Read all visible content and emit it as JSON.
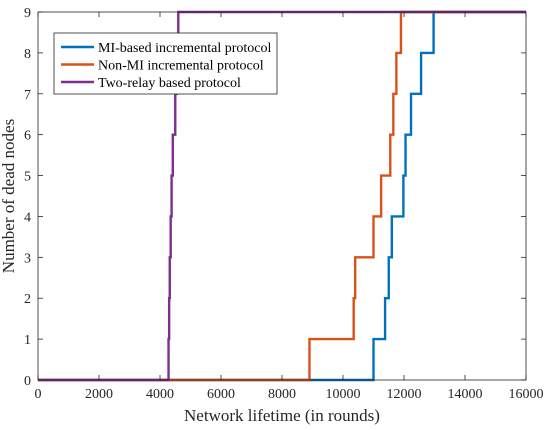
{
  "chart_data": {
    "type": "line",
    "step": true,
    "title": "",
    "xlabel": "Network lifetime (in rounds)",
    "ylabel": "Number of dead nodes",
    "xlim": [
      0,
      16000
    ],
    "ylim": [
      0,
      9
    ],
    "xticks": [
      0,
      2000,
      4000,
      6000,
      8000,
      10000,
      12000,
      14000,
      16000
    ],
    "yticks": [
      0,
      1,
      2,
      3,
      4,
      5,
      6,
      7,
      8,
      9
    ],
    "grid": false,
    "legend_position": "top-left",
    "series": [
      {
        "name": "MI-based incremental protocol",
        "color": "#0072BD",
        "x": [
          0,
          11000,
          11380,
          11500,
          11600,
          11980,
          12050,
          12230,
          12560,
          12970,
          16000
        ],
        "y": [
          0,
          1,
          2,
          3,
          4,
          5,
          6,
          7,
          8,
          9,
          9
        ]
      },
      {
        "name": "Non-MI incremental protocol",
        "color": "#D95319",
        "x": [
          0,
          8900,
          10350,
          10400,
          11000,
          11250,
          11550,
          11650,
          11750,
          11900,
          16000
        ],
        "y": [
          0,
          1,
          2,
          3,
          4,
          5,
          6,
          7,
          8,
          9,
          9
        ]
      },
      {
        "name": "Two-relay based protocol",
        "color": "#7E2F8E",
        "x": [
          0,
          4280,
          4300,
          4320,
          4350,
          4380,
          4420,
          4500,
          4550,
          4600,
          16000
        ],
        "y": [
          0,
          1,
          2,
          3,
          4,
          5,
          6,
          7,
          8,
          9,
          9
        ]
      }
    ]
  }
}
